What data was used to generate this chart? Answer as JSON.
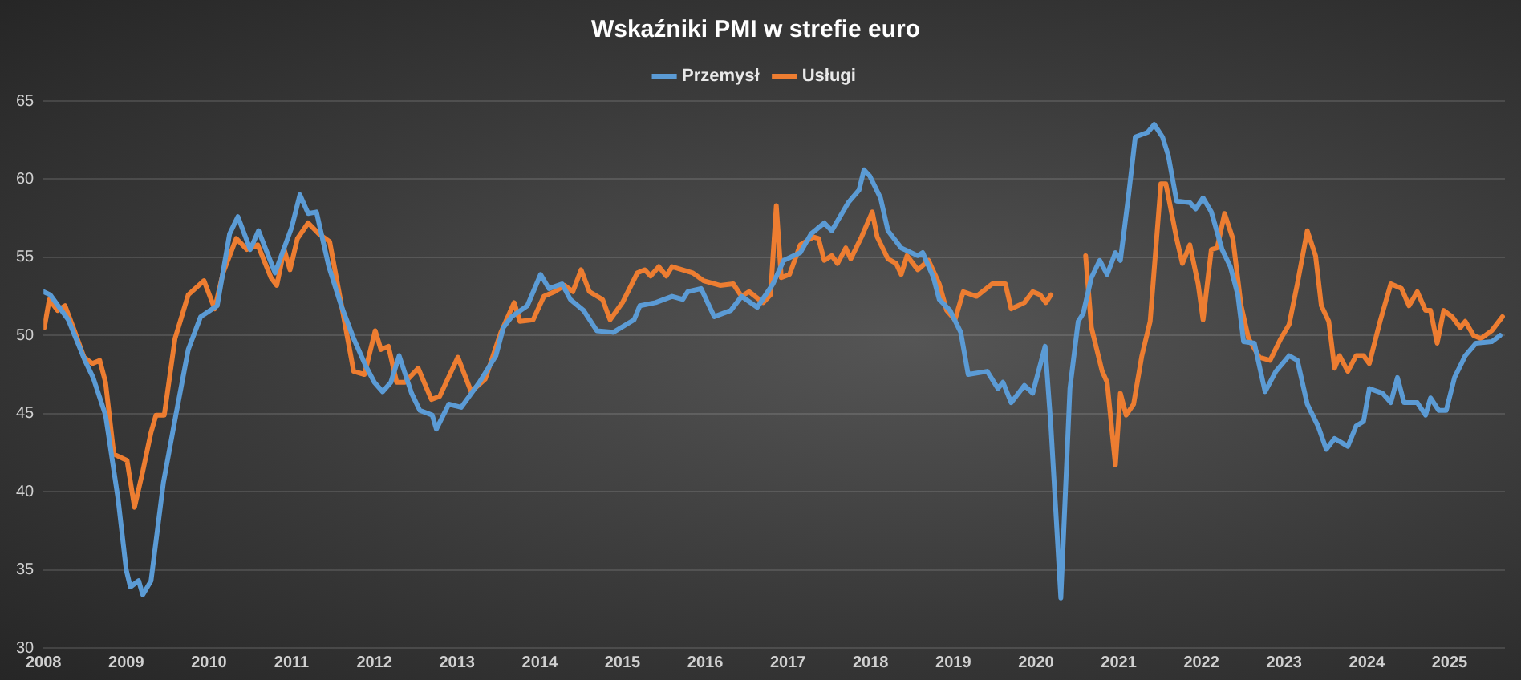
{
  "chart_data": {
    "type": "line",
    "title": "Wskaźniki PMI w strefie euro",
    "grid": "y",
    "legend": "top",
    "line_style": "solid",
    "marker": "none",
    "xlim": [
      2008,
      2025.67
    ],
    "xticks": [
      2008,
      2009,
      2010,
      2011,
      2012,
      2013,
      2014,
      2015,
      2016,
      2017,
      2018,
      2019,
      2020,
      2021,
      2022,
      2023,
      2024,
      2025
    ],
    "ylim": [
      30,
      65
    ],
    "yticks": [
      30,
      35,
      40,
      45,
      50,
      55,
      60,
      65
    ],
    "series": [
      {
        "name": "Przemysł",
        "color": "#5b9bd5",
        "x": [
          2008.0,
          2008.08,
          2008.3,
          2008.5,
          2008.6,
          2008.75,
          2008.9,
          2009.0,
          2009.05,
          2009.15,
          2009.2,
          2009.3,
          2009.45,
          2009.6,
          2009.75,
          2009.9,
          2010.1,
          2010.25,
          2010.35,
          2010.5,
          2010.6,
          2010.8,
          2011.0,
          2011.1,
          2011.2,
          2011.3,
          2011.45,
          2011.6,
          2011.75,
          2011.9,
          2012.0,
          2012.1,
          2012.2,
          2012.3,
          2012.45,
          2012.55,
          2012.7,
          2012.75,
          2012.9,
          2013.05,
          2013.27,
          2013.47,
          2013.56,
          2013.66,
          2013.85,
          2014.01,
          2014.11,
          2014.27,
          2014.37,
          2014.53,
          2014.69,
          2014.89,
          2015.14,
          2015.21,
          2015.4,
          2015.6,
          2015.73,
          2015.79,
          2015.95,
          2016.11,
          2016.31,
          2016.44,
          2016.63,
          2016.82,
          2016.95,
          2017.15,
          2017.28,
          2017.44,
          2017.53,
          2017.73,
          2017.86,
          2017.92,
          2017.99,
          2018.12,
          2018.21,
          2018.37,
          2018.57,
          2018.63,
          2018.76,
          2018.83,
          2018.96,
          2019.09,
          2019.18,
          2019.41,
          2019.54,
          2019.6,
          2019.7,
          2019.86,
          2019.96,
          2020.11,
          2020.18,
          2020.3,
          2020.41,
          2020.51,
          2020.57,
          2020.67,
          2020.77,
          2020.86,
          2020.96,
          2021.02,
          2021.12,
          2021.2,
          2021.35,
          2021.43,
          2021.53,
          2021.6,
          2021.7,
          2021.86,
          2021.93,
          2022.02,
          2022.12,
          2022.25,
          2022.35,
          2022.44,
          2022.51,
          2022.64,
          2022.77,
          2022.9,
          2023.06,
          2023.16,
          2023.28,
          2023.41,
          2023.51,
          2023.61,
          2023.77,
          2023.87,
          2023.96,
          2024.03,
          2024.19,
          2024.29,
          2024.37,
          2024.45,
          2024.61,
          2024.71,
          2024.77,
          2024.87,
          2024.96,
          2025.06,
          2025.19,
          2025.32,
          2025.51,
          2025.61
        ],
        "values": [
          52.8,
          52.6,
          51,
          48.4,
          47.3,
          44.9,
          39.6,
          35,
          33.9,
          34.3,
          33.4,
          34.3,
          40.6,
          44.9,
          49.1,
          51.2,
          51.9,
          56.5,
          57.6,
          55.5,
          56.7,
          54,
          56.9,
          59,
          57.8,
          57.9,
          54.4,
          51.9,
          49.8,
          48,
          47,
          46.4,
          47,
          48.7,
          46.3,
          45.2,
          44.9,
          44,
          45.6,
          45.4,
          47,
          48.7,
          50.5,
          51.2,
          51.9,
          53.9,
          53,
          53.3,
          52.3,
          51.6,
          50.3,
          50.2,
          51,
          51.9,
          52.1,
          52.5,
          52.3,
          52.8,
          53,
          51.2,
          51.6,
          52.5,
          51.8,
          53.3,
          54.8,
          55.3,
          56.5,
          57.2,
          56.7,
          58.5,
          59.3,
          60.6,
          60.2,
          58.8,
          56.7,
          55.6,
          55.1,
          55.3,
          53.7,
          52.3,
          51.6,
          50.2,
          47.5,
          47.7,
          46.6,
          47,
          45.7,
          46.8,
          46.3,
          49.3,
          44.2,
          33.2,
          46.6,
          50.9,
          51.4,
          53.7,
          54.8,
          53.9,
          55.3,
          54.8,
          59,
          62.7,
          63,
          63.5,
          62.7,
          61.5,
          58.6,
          58.5,
          58.1,
          58.8,
          57.9,
          55.5,
          54.4,
          52.6,
          49.6,
          49.5,
          46.4,
          47.7,
          48.7,
          48.4,
          45.6,
          44.2,
          42.7,
          43.4,
          42.9,
          44.2,
          44.5,
          46.6,
          46.3,
          45.7,
          47.3,
          45.7,
          45.7,
          44.9,
          46,
          45.2,
          45.2,
          47.3,
          48.7,
          49.5,
          49.6,
          50
        ]
      },
      {
        "name": "Usługi",
        "color": "#ed7d31",
        "x": [
          2008.01,
          2008.07,
          2008.17,
          2008.26,
          2008.36,
          2008.49,
          2008.59,
          2008.68,
          2008.75,
          2008.85,
          2009.01,
          2009.1,
          2009.2,
          2009.3,
          2009.36,
          2009.46,
          2009.59,
          2009.75,
          2009.94,
          2010.07,
          2010.17,
          2010.33,
          2010.46,
          2010.59,
          2010.75,
          2010.82,
          2010.91,
          2010.98,
          2011.07,
          2011.2,
          2011.33,
          2011.46,
          2011.59,
          2011.75,
          2011.88,
          2012.01,
          2012.08,
          2012.17,
          2012.27,
          2012.37,
          2012.53,
          2012.69,
          2012.79,
          2013.01,
          2013.17,
          2013.34,
          2013.53,
          2013.69,
          2013.76,
          2013.92,
          2014.05,
          2014.18,
          2014.3,
          2014.4,
          2014.5,
          2014.6,
          2014.76,
          2014.85,
          2015.0,
          2015.18,
          2015.27,
          2015.34,
          2015.44,
          2015.53,
          2015.6,
          2015.85,
          2015.98,
          2016.18,
          2016.34,
          2016.44,
          2016.53,
          2016.7,
          2016.79,
          2016.86,
          2016.92,
          2017.02,
          2017.15,
          2017.31,
          2017.37,
          2017.44,
          2017.53,
          2017.6,
          2017.7,
          2017.76,
          2017.89,
          2018.02,
          2018.08,
          2018.21,
          2018.31,
          2018.37,
          2018.44,
          2018.57,
          2018.7,
          2018.83,
          2018.92,
          2019.02,
          2019.12,
          2019.28,
          2019.47,
          2019.63,
          2019.7,
          2019.86,
          2019.96,
          2020.05,
          2020.12,
          2020.18,
          2020.3,
          2020.6,
          2020.67,
          2020.8,
          2020.86,
          2020.96,
          2021.02,
          2021.09,
          2021.18,
          2021.28,
          2021.38,
          2021.51,
          2021.57,
          2021.7,
          2021.77,
          2021.86,
          2021.96,
          2022.02,
          2022.12,
          2022.19,
          2022.28,
          2022.38,
          2022.48,
          2022.57,
          2022.7,
          2022.83,
          2022.96,
          2023.06,
          2023.16,
          2023.28,
          2023.38,
          2023.45,
          2023.54,
          2023.61,
          2023.67,
          2023.77,
          2023.87,
          2023.96,
          2024.03,
          2024.16,
          2024.29,
          2024.42,
          2024.51,
          2024.61,
          2024.71,
          2024.77,
          2024.85,
          2024.93,
          2025.03,
          2025.13,
          2025.19,
          2025.29,
          2025.38,
          2025.51,
          2025.64
        ],
        "values": [
          50.5,
          52.3,
          51.6,
          51.9,
          50.5,
          48.6,
          48.2,
          48.4,
          47,
          42.4,
          42,
          39,
          41.3,
          43.8,
          44.9,
          44.9,
          49.8,
          52.6,
          53.5,
          51.7,
          54,
          56.2,
          55.5,
          55.8,
          53.7,
          53.2,
          55.5,
          54.2,
          56.2,
          57.2,
          56.5,
          56,
          52.3,
          47.7,
          47.5,
          50.3,
          49.1,
          49.3,
          47,
          47,
          47.9,
          45.9,
          46.1,
          48.6,
          46.4,
          47.2,
          50.2,
          52.1,
          50.9,
          51,
          52.5,
          52.8,
          53.2,
          52.8,
          54.2,
          52.8,
          52.3,
          51,
          52.1,
          54,
          54.2,
          53.8,
          54.4,
          53.8,
          54.4,
          54,
          53.5,
          53.2,
          53.3,
          52.5,
          52.8,
          52.1,
          52.6,
          58.3,
          53.7,
          53.9,
          55.8,
          56.3,
          56.2,
          54.8,
          55.1,
          54.6,
          55.6,
          54.9,
          56.3,
          57.9,
          56.3,
          54.9,
          54.6,
          53.9,
          55.1,
          54.2,
          54.8,
          53.3,
          51.6,
          51,
          52.8,
          52.5,
          53.3,
          53.3,
          51.7,
          52.1,
          52.8,
          52.6,
          52.1,
          52.6,
          null,
          55.1,
          50.5,
          47.7,
          47,
          41.7,
          46.3,
          44.9,
          45.6,
          48.7,
          50.9,
          59.7,
          59.7,
          56.2,
          54.6,
          55.8,
          53.3,
          51,
          55.5,
          55.6,
          57.8,
          56.2,
          51.9,
          49.8,
          48.6,
          48.4,
          49.8,
          50.7,
          53.3,
          56.7,
          55.1,
          51.9,
          50.9,
          47.9,
          48.7,
          47.7,
          48.7,
          48.7,
          48.2,
          50.9,
          53.3,
          53,
          51.9,
          52.8,
          51.6,
          51.6,
          49.5,
          51.6,
          51.2,
          50.5,
          50.9,
          50,
          49.8,
          50.3,
          51.2
        ]
      }
    ]
  }
}
